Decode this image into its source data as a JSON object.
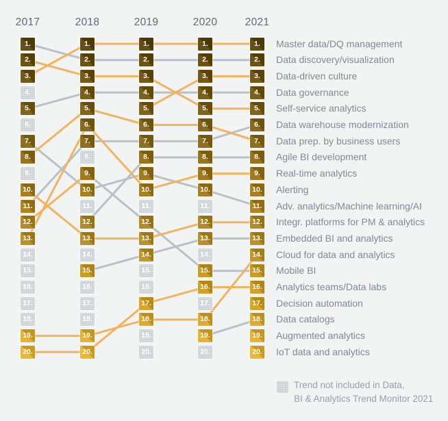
{
  "years": [
    "2017",
    "2018",
    "2019",
    "2020",
    "2021"
  ],
  "legend": {
    "line1": "Trend not included in Data,",
    "line2": "BI & Analytics Trend Monitor 2021"
  },
  "colors": {
    "background": "#f2f3f3",
    "orange_line": "#f1b35e",
    "gray_line": "#b9c0c7",
    "gray_box": "#c5cbd0",
    "box_rank1": "#5a4103",
    "box_rank20": "#efb11d",
    "number_text": "#ffffff",
    "year_text": "#5e6a75",
    "label_text": "#7e8a95",
    "legend_text": "#96a0a9"
  },
  "chart_data": {
    "type": "bump",
    "title": "",
    "years": [
      2017,
      2018,
      2019,
      2020,
      2021
    ],
    "max_rank": 20,
    "legend_note": "Trend not included in Data, BI & Analytics Trend Monitor 2021",
    "trends": [
      {
        "rank_2021": 1,
        "label": "Master data/DQ management",
        "ranks": [
          3,
          1,
          1,
          1,
          1
        ],
        "line_color": "orange"
      },
      {
        "rank_2021": 2,
        "label": "Data discovery/visualization",
        "ranks": [
          1,
          2,
          2,
          2,
          2
        ],
        "line_color": "gray"
      },
      {
        "rank_2021": 3,
        "label": "Data-driven culture",
        "ranks": [
          null,
          null,
          5,
          3,
          3
        ],
        "line_color": "orange"
      },
      {
        "rank_2021": 4,
        "label": "Data governance",
        "ranks": [
          5,
          4,
          4,
          4,
          4
        ],
        "line_color": "gray"
      },
      {
        "rank_2021": 5,
        "label": "Self-service analytics",
        "ranks": [
          2,
          3,
          3,
          5,
          5
        ],
        "line_color": "orange"
      },
      {
        "rank_2021": 6,
        "label": "Data warehouse modernization",
        "ranks": [
          11,
          7,
          7,
          7,
          6
        ],
        "line_color": "gray"
      },
      {
        "rank_2021": 7,
        "label": "Data prep. by business users",
        "ranks": [
          8,
          5,
          6,
          6,
          7
        ],
        "line_color": "orange"
      },
      {
        "rank_2021": 8,
        "label": "Agile BI development",
        "ranks": [
          null,
          12,
          8,
          8,
          8
        ],
        "line_color": "gray"
      },
      {
        "rank_2021": 9,
        "label": "Real-time analytics",
        "ranks": [
          13,
          6,
          10,
          9,
          9
        ],
        "line_color": "orange"
      },
      {
        "rank_2021": 10,
        "label": "Alerting",
        "ranks": [
          null,
          null,
          null,
          null,
          10
        ],
        "line_color": "orange"
      },
      {
        "rank_2021": 11,
        "label": "Adv. analytics/Machine learning/AI",
        "ranks": [
          7,
          10,
          9,
          10,
          11
        ],
        "line_color": "gray"
      },
      {
        "rank_2021": 12,
        "label": "Integr. platforms for PM & analytics",
        "ranks": [
          10,
          13,
          13,
          12,
          12
        ],
        "line_color": "orange"
      },
      {
        "rank_2021": 13,
        "label": "Embedded BI and analytics",
        "ranks": [
          null,
          15,
          14,
          13,
          13
        ],
        "line_color": "gray"
      },
      {
        "rank_2021": 14,
        "label": "Cloud for data and analytics",
        "ranks": [
          19,
          19,
          18,
          18,
          14
        ],
        "line_color": "orange"
      },
      {
        "rank_2021": 15,
        "label": "Mobile BI",
        "ranks": [
          12,
          9,
          12,
          15,
          15
        ],
        "line_color": "gray",
        "segment_colors": [
          "orange",
          "gray",
          "gray",
          "gray"
        ]
      },
      {
        "rank_2021": 16,
        "label": "Analytics teams/Data labs",
        "ranks": [
          20,
          20,
          17,
          16,
          16
        ],
        "line_color": "orange"
      },
      {
        "rank_2021": 17,
        "label": "Decision automation",
        "ranks": [
          null,
          null,
          null,
          null,
          17
        ],
        "line_color": "orange"
      },
      {
        "rank_2021": 18,
        "label": "Data catalogs",
        "ranks": [
          null,
          null,
          null,
          19,
          18
        ],
        "line_color": "gray"
      },
      {
        "rank_2021": 19,
        "label": "Augmented analytics",
        "ranks": [
          null,
          null,
          null,
          null,
          19
        ],
        "line_color": "orange"
      },
      {
        "rank_2021": 20,
        "label": "IoT data and analytics",
        "ranks": [
          null,
          null,
          null,
          null,
          20
        ],
        "line_color": "orange"
      }
    ],
    "not_included_ranks": {
      "2017": [
        4,
        6,
        9,
        14,
        15,
        16,
        17,
        18
      ],
      "2018": [
        8,
        11,
        14,
        16,
        17,
        18
      ],
      "2019": [
        11,
        15,
        16,
        19,
        20
      ],
      "2020": [
        11,
        14,
        17,
        20
      ]
    }
  }
}
